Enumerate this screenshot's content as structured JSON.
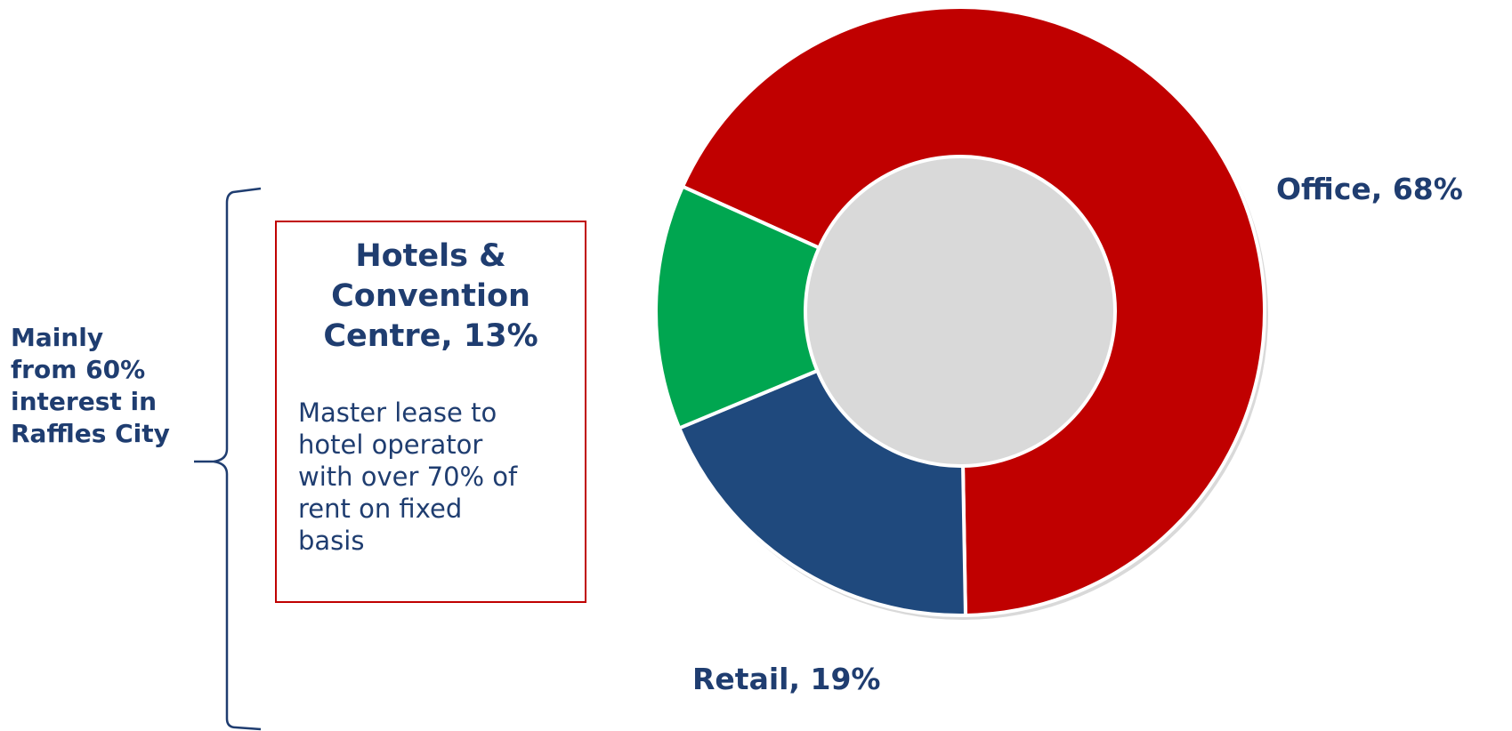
{
  "chart_data": {
    "type": "pie",
    "variant": "donut",
    "slices": [
      {
        "name": "Office",
        "value": 68,
        "label": "Office, 68%",
        "color": "#c00000"
      },
      {
        "name": "Retail",
        "value": 19,
        "label": "Retail, 19%",
        "color": "#1f497d"
      },
      {
        "name": "Hotels & Convention Centre",
        "value": 13,
        "label": "Hotels & Convention Centre, 13%",
        "color": "#00a650"
      }
    ]
  },
  "callout": {
    "title": "Hotels &\nConvention\nCentre, 13%",
    "description": "Master lease to\nhotel operator\nwith over 70% of\nrent on fixed\nbasis"
  },
  "brace_note": "Mainly\nfrom 60%\ninterest in\nRaffles City"
}
